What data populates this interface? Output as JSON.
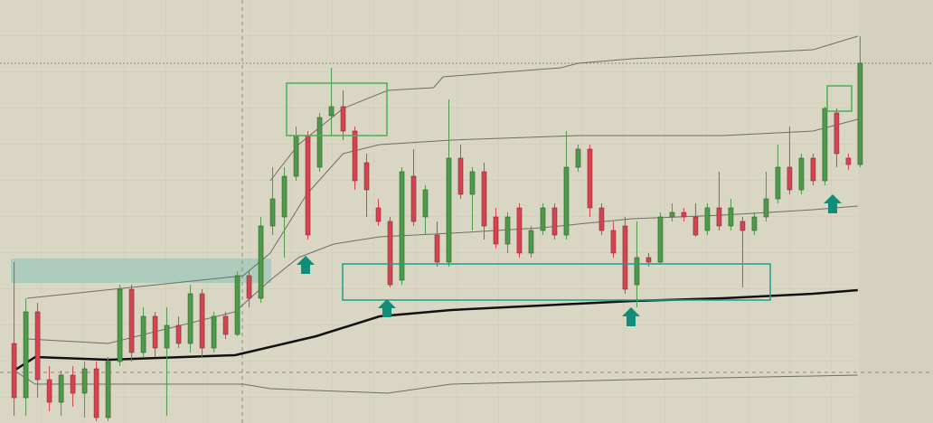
{
  "chart_data": {
    "type": "candlestick",
    "xlim": [
      -1.2,
      78.2
    ],
    "ylim": [
      0,
      468
    ],
    "up_color": "#4f9a4a",
    "down_color": "#d4434f",
    "grid": true,
    "open": [
      88,
      28,
      123,
      48,
      23,
      53,
      33,
      60,
      6,
      68,
      148,
      78,
      118,
      83,
      108,
      88,
      143,
      83,
      118,
      98,
      163,
      138,
      218,
      228,
      273,
      318,
      283,
      340,
      350,
      323,
      288,
      238,
      223,
      158,
      273,
      228,
      208,
      178,
      293,
      253,
      278,
      228,
      198,
      238,
      188,
      213,
      238,
      208,
      283,
      303,
      238,
      213,
      218,
      153,
      183,
      178,
      228,
      233,
      228,
      213,
      238,
      218,
      223,
      213,
      228,
      248,
      283,
      258,
      293,
      268,
      343,
      293,
      286
    ],
    "close": [
      28,
      123,
      48,
      23,
      53,
      33,
      60,
      6,
      68,
      148,
      78,
      118,
      83,
      108,
      88,
      143,
      83,
      118,
      98,
      163,
      138,
      218,
      248,
      273,
      318,
      208,
      338,
      350,
      323,
      268,
      258,
      223,
      153,
      278,
      223,
      258,
      178,
      293,
      253,
      278,
      218,
      198,
      228,
      188,
      213,
      238,
      208,
      283,
      303,
      238,
      213,
      188,
      148,
      183,
      178,
      228,
      233,
      228,
      208,
      238,
      218,
      238,
      213,
      228,
      248,
      283,
      258,
      293,
      268,
      348,
      298,
      286,
      398
    ],
    "high": [
      178,
      138,
      133,
      63,
      58,
      63,
      68,
      68,
      73,
      153,
      153,
      128,
      123,
      128,
      118,
      153,
      148,
      123,
      123,
      168,
      168,
      228,
      283,
      283,
      328,
      323,
      343,
      393,
      368,
      328,
      298,
      248,
      228,
      283,
      303,
      263,
      223,
      358,
      308,
      283,
      288,
      238,
      233,
      243,
      218,
      243,
      243,
      323,
      308,
      308,
      243,
      223,
      228,
      223,
      188,
      233,
      243,
      238,
      243,
      243,
      278,
      248,
      228,
      233,
      278,
      308,
      328,
      298,
      298,
      350,
      348,
      298,
      428
    ],
    "low": [
      8,
      8,
      28,
      13,
      8,
      18,
      6,
      2,
      2,
      63,
      68,
      73,
      73,
      8,
      83,
      78,
      73,
      78,
      93,
      96,
      128,
      133,
      208,
      183,
      268,
      203,
      278,
      318,
      313,
      258,
      228,
      218,
      150,
      153,
      218,
      208,
      173,
      173,
      248,
      213,
      203,
      193,
      188,
      183,
      183,
      208,
      203,
      203,
      278,
      228,
      208,
      183,
      143,
      128,
      173,
      176,
      223,
      223,
      206,
      208,
      213,
      213,
      150,
      208,
      223,
      243,
      253,
      253,
      263,
      263,
      283,
      280,
      283
    ],
    "lines": [
      {
        "color": "#6e6e66",
        "width": 1,
        "x": [
          21.8,
          24.2,
          28,
          31.8,
          35.7,
          36.5,
          46.5,
          48,
          52.6,
          60.3,
          68,
          71.8
        ],
        "values": [
          268,
          308,
          348,
          368,
          371,
          383,
          393,
          398,
          403,
          408,
          413,
          428
        ]
      },
      {
        "color": "#6e6e66",
        "width": 1,
        "x": [
          1.1,
          19.5,
          21.8,
          24.9,
          28,
          31.1,
          37.2,
          48,
          60.3,
          68,
          71.8
        ],
        "values": [
          138,
          163,
          188,
          253,
          298,
          308,
          313,
          318,
          318,
          323,
          336
        ]
      },
      {
        "color": "#6e6e66",
        "width": 1,
        "x": [
          1.1,
          8,
          18.8,
          21.8,
          24.2,
          27.2,
          31.1,
          37.2,
          44.9,
          52.6,
          60.3,
          68,
          71.8
        ],
        "values": [
          93,
          88,
          123,
          158,
          183,
          198,
          206,
          210,
          216,
          226,
          230,
          236,
          240
        ]
      },
      {
        "color": "#111111",
        "width": 2.5,
        "x": [
          0,
          1.8,
          8,
          18.8,
          25.7,
          31.1,
          37.2,
          44.9,
          52.6,
          60.3,
          68,
          71.8
        ],
        "values": [
          58,
          73,
          70,
          75,
          96,
          118,
          125,
          130,
          135,
          138,
          143,
          147
        ]
      },
      {
        "color": "#6e6e66",
        "width": 1,
        "x": [
          0,
          1.8,
          8,
          19.5,
          21.8,
          31.8,
          37.2,
          52.6,
          71.8
        ],
        "values": [
          58,
          43,
          43,
          43,
          38,
          33,
          43,
          48,
          53
        ]
      }
    ]
  }
}
